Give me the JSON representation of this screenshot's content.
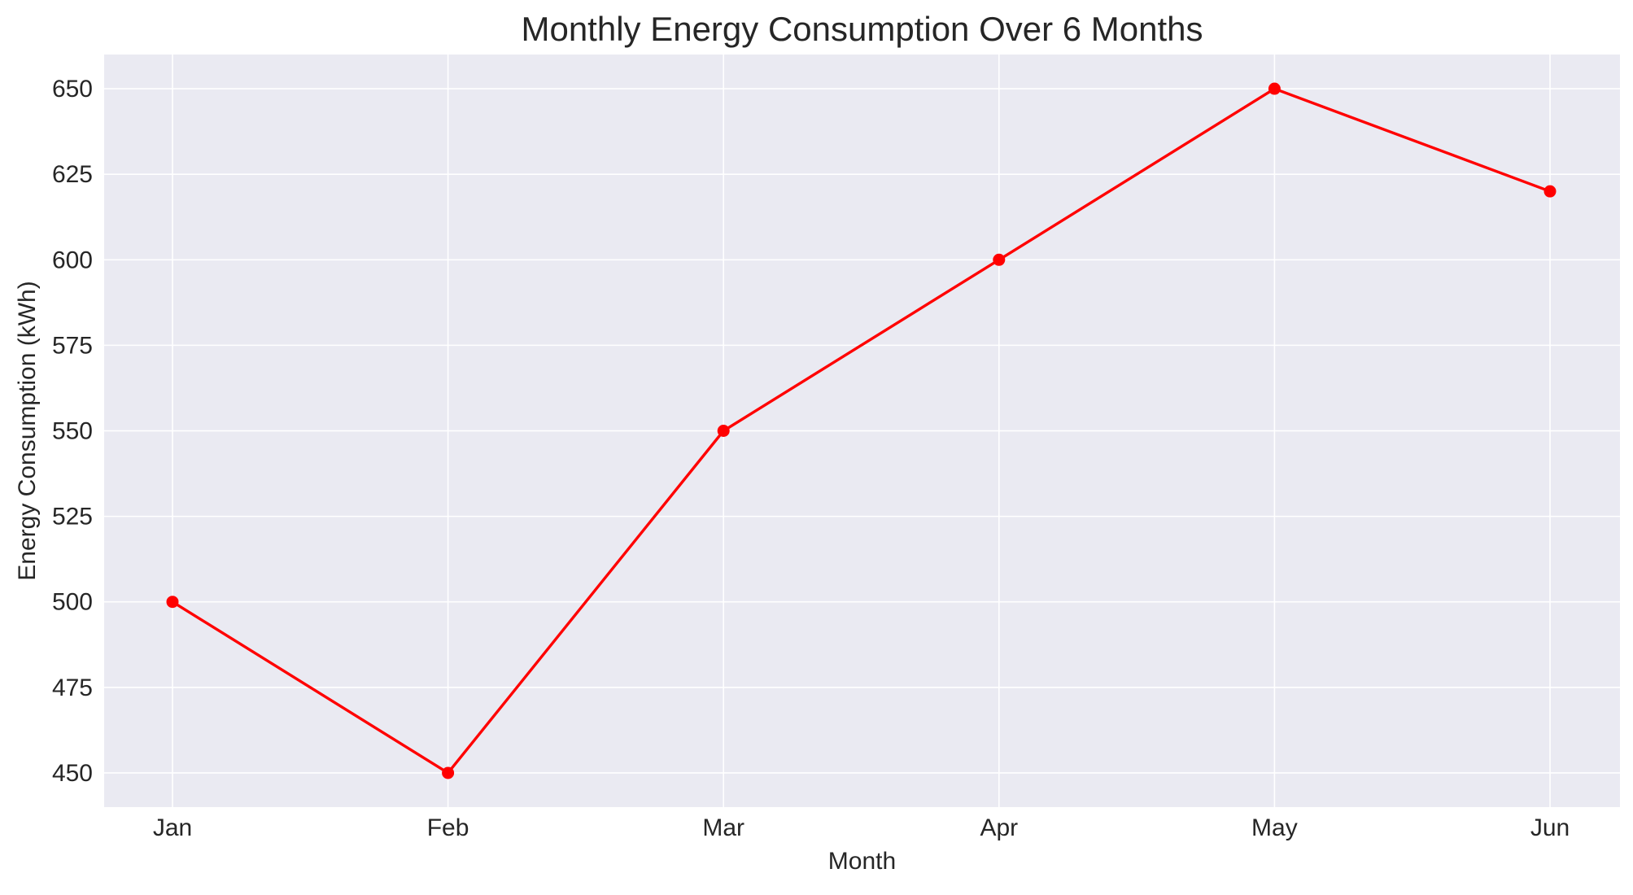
{
  "colors": {
    "plot_background": "#eaeaf2",
    "grid": "#ffffff",
    "series": "#ff0000",
    "text": "#262626"
  },
  "chart_data": {
    "type": "line",
    "title": "Monthly Energy Consumption Over 6 Months",
    "xlabel": "Month",
    "ylabel": "Energy Consumption (kWh)",
    "categories": [
      "Jan",
      "Feb",
      "Mar",
      "Apr",
      "May",
      "Jun"
    ],
    "series": [
      {
        "values": [
          500,
          450,
          550,
          600,
          650,
          620
        ]
      }
    ],
    "ylim": [
      440,
      660
    ],
    "yticks": [
      450,
      475,
      500,
      525,
      550,
      575,
      600,
      625,
      650
    ],
    "grid": true,
    "legend": "none",
    "marker": "circle"
  }
}
